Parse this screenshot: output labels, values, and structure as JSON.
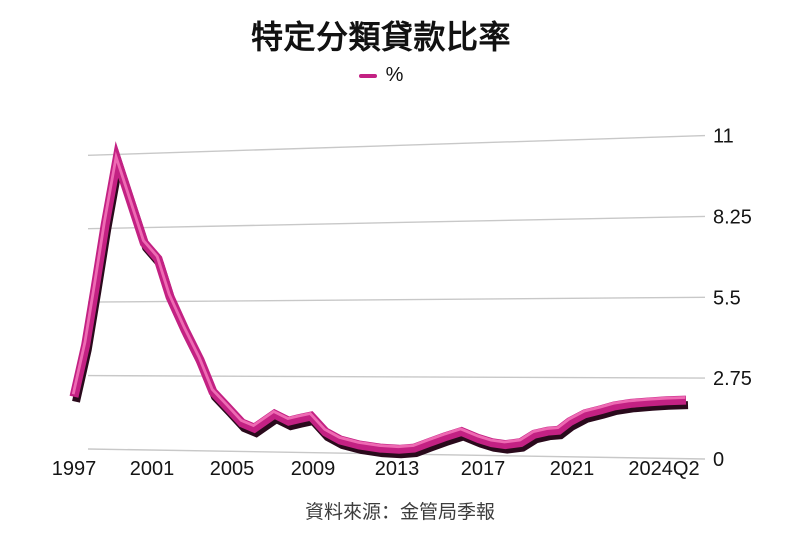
{
  "header": {
    "title": "特定分類貸款比率"
  },
  "legend": {
    "series_label": "%"
  },
  "footer": {
    "source": "資料來源：金管局季報"
  },
  "chart_data": {
    "type": "line",
    "title": "特定分類貸款比率",
    "unit_label": "%",
    "source": "資料來源：金管局季報",
    "ylim": [
      0,
      11
    ],
    "grid": true,
    "legend_position": "top-center",
    "y_axis_side": "right",
    "y_ticks": [
      {
        "value": 0,
        "label": "0"
      },
      {
        "value": 2.75,
        "label": "2.75"
      },
      {
        "value": 5.5,
        "label": "5.5"
      },
      {
        "value": 8.25,
        "label": "8.25"
      },
      {
        "value": 11,
        "label": "11"
      }
    ],
    "x_ticks": [
      {
        "year": 1997,
        "label": "1997"
      },
      {
        "year": 2001,
        "label": "2001"
      },
      {
        "year": 2005,
        "label": "2005"
      },
      {
        "year": 2009,
        "label": "2009"
      },
      {
        "year": 2013,
        "label": "2013"
      },
      {
        "year": 2017,
        "label": "2017"
      },
      {
        "year": 2021,
        "label": "2021"
      },
      {
        "year": 2024.5,
        "label": "2024Q2"
      }
    ],
    "series": [
      {
        "name": "%",
        "color": "#c32183",
        "points": [
          [
            1997.0,
            1.95
          ],
          [
            1997.6,
            3.9
          ],
          [
            1998.1,
            6.1
          ],
          [
            1998.6,
            8.4
          ],
          [
            1999.2,
            10.81
          ],
          [
            2000.6,
            7.68
          ],
          [
            2001.3,
            7.08
          ],
          [
            2001.9,
            5.67
          ],
          [
            2002.65,
            4.45
          ],
          [
            2003.4,
            3.34
          ],
          [
            2004.05,
            2.17
          ],
          [
            2004.8,
            1.59
          ],
          [
            2005.5,
            1.04
          ],
          [
            2006.1,
            0.86
          ],
          [
            2007.1,
            1.38
          ],
          [
            2007.8,
            1.13
          ],
          [
            2008.3,
            1.22
          ],
          [
            2008.9,
            1.32
          ],
          [
            2009.6,
            0.75
          ],
          [
            2010.3,
            0.47
          ],
          [
            2011.2,
            0.3
          ],
          [
            2012.2,
            0.2
          ],
          [
            2013.1,
            0.17
          ],
          [
            2013.8,
            0.22
          ],
          [
            2014.5,
            0.43
          ],
          [
            2015.2,
            0.63
          ],
          [
            2016.0,
            0.83
          ],
          [
            2016.8,
            0.59
          ],
          [
            2017.4,
            0.45
          ],
          [
            2018.0,
            0.39
          ],
          [
            2018.7,
            0.47
          ],
          [
            2019.3,
            0.77
          ],
          [
            2019.9,
            0.88
          ],
          [
            2020.4,
            0.92
          ],
          [
            2020.9,
            1.22
          ],
          [
            2021.4,
            1.5
          ],
          [
            2021.9,
            1.65
          ],
          [
            2022.3,
            1.78
          ],
          [
            2022.8,
            1.87
          ],
          [
            2023.4,
            1.93
          ],
          [
            2023.9,
            1.97
          ],
          [
            2024.5,
            2.0
          ]
        ]
      }
    ],
    "style": {
      "grid_color": "#c8c8c8",
      "axis_text_color": "#141414",
      "line_highlight_color": "#ee6ab3",
      "line_shadow_color": "#2a0a1c",
      "background": "#ffffff"
    }
  }
}
